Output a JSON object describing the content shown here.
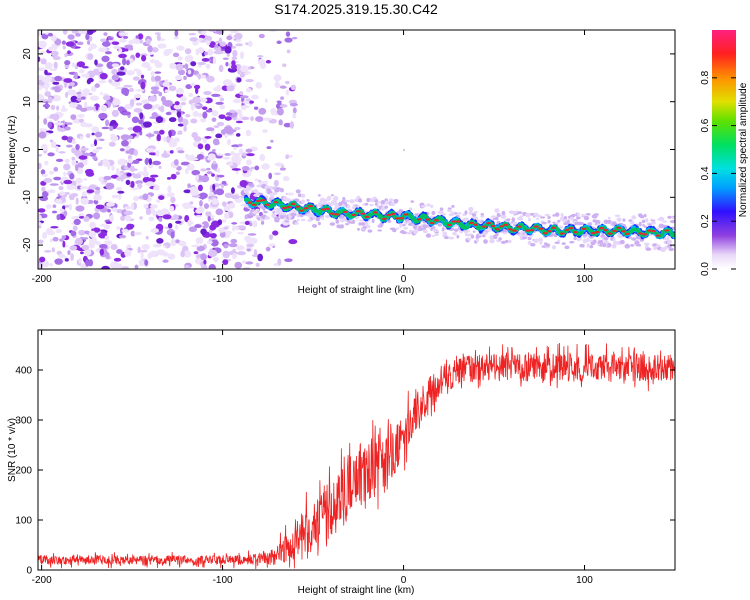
{
  "title": "S174.2025.319.15.30.C42",
  "colors": {
    "snr_line": "#ee2222",
    "frame": "#000000",
    "noise": "#8a2be2",
    "signal_core": "#e8262e",
    "signal_ridge": "#00c060",
    "signal_halo": "#1030ff"
  },
  "chart_data": [
    {
      "type": "heatmap",
      "name": "spectrogram",
      "title": "S174.2025.319.15.30.C42",
      "xlabel": "Height of straight line (km)",
      "ylabel": "Frequency (Hz)",
      "xlim": [
        -202,
        150
      ],
      "ylim": [
        -25,
        25
      ],
      "xticks": [
        -200,
        -100,
        0,
        100
      ],
      "yticks": [
        -20,
        -10,
        0,
        10,
        20
      ],
      "xtick_labels": [
        "-200",
        "-100",
        "0",
        "100"
      ],
      "ytick_labels": [
        "-20",
        "-10",
        "0",
        "10",
        "20"
      ],
      "noise_region_x": [
        -202,
        -72
      ],
      "signal_track": {
        "x": [
          -87,
          -80,
          -70,
          -60,
          -50,
          -40,
          -30,
          -20,
          -10,
          0,
          10,
          20,
          30,
          40,
          50,
          60,
          70,
          80,
          90,
          100,
          110,
          120,
          130,
          140,
          150
        ],
        "freq": [
          -11,
          -11,
          -11.5,
          -12,
          -12.5,
          -13,
          -13.5,
          -13.5,
          -14,
          -14,
          -14.5,
          -15,
          -15.5,
          -16,
          -16,
          -16.5,
          -16.5,
          -17,
          -17,
          -17,
          -17,
          -17,
          -17.2,
          -17.5,
          -17.5
        ]
      },
      "colorbar": {
        "label": "Normalized spectral amplitude",
        "range": [
          0,
          1
        ],
        "ticks": [
          0.0,
          0.2,
          0.4,
          0.6,
          0.8
        ],
        "tick_labels": [
          "0.0",
          "0.2",
          "0.4",
          "0.6",
          "0.8"
        ]
      }
    },
    {
      "type": "line",
      "name": "snr",
      "xlabel": "Height of straight line (km)",
      "ylabel": "SNR (10 * v/v)",
      "xlim": [
        -202,
        150
      ],
      "ylim": [
        0,
        480
      ],
      "xticks": [
        -200,
        -100,
        0,
        100
      ],
      "yticks": [
        0,
        100,
        200,
        300,
        400
      ],
      "xtick_labels": [
        "-200",
        "-100",
        "0",
        "100"
      ],
      "ytick_labels": [
        "0",
        "100",
        "200",
        "300",
        "400"
      ],
      "series": [
        {
          "name": "SNR",
          "x": [
            -202,
            -180,
            -160,
            -140,
            -120,
            -100,
            -90,
            -80,
            -75,
            -70,
            -65,
            -60,
            -55,
            -50,
            -45,
            -40,
            -35,
            -30,
            -25,
            -20,
            -15,
            -10,
            -5,
            0,
            5,
            10,
            15,
            20,
            25,
            30,
            35,
            40,
            50,
            60,
            70,
            80,
            90,
            100,
            110,
            120,
            130,
            140,
            150
          ],
          "values": [
            20,
            20,
            20,
            20,
            20,
            20,
            20,
            22,
            25,
            30,
            45,
            60,
            75,
            90,
            105,
            120,
            140,
            165,
            185,
            200,
            210,
            205,
            230,
            270,
            300,
            330,
            355,
            375,
            385,
            395,
            400,
            405,
            405,
            405,
            405,
            405,
            405,
            405,
            405,
            405,
            405,
            405,
            405
          ],
          "noise": [
            12,
            12,
            12,
            12,
            12,
            12,
            12,
            15,
            20,
            25,
            40,
            50,
            55,
            60,
            65,
            70,
            75,
            80,
            80,
            80,
            80,
            75,
            70,
            60,
            55,
            50,
            45,
            40,
            40,
            35,
            35,
            35,
            35,
            35,
            35,
            35,
            35,
            35,
            35,
            35,
            35,
            35,
            35
          ]
        }
      ]
    }
  ]
}
